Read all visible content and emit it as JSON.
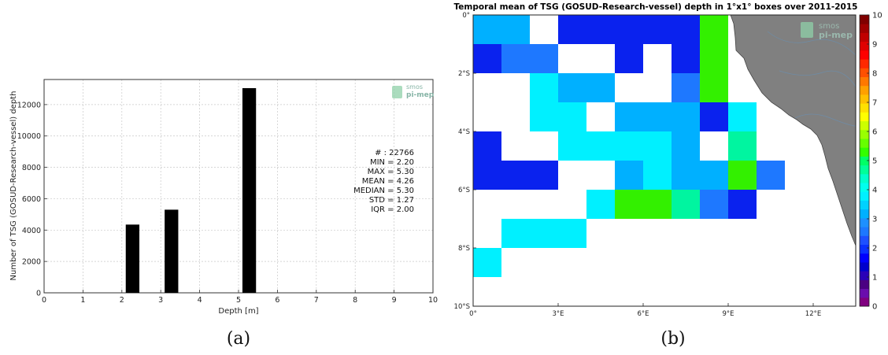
{
  "chart_data": [
    {
      "type": "bar",
      "title": "",
      "xlabel": "Depth [m]",
      "ylabel": "Number of TSG (GOSUD-Research-vessel) depth",
      "xlim": [
        0,
        10
      ],
      "ylim": [
        0,
        13600
      ],
      "xticks": [
        "0",
        "1",
        "2",
        "3",
        "4",
        "5",
        "6",
        "7",
        "8",
        "9",
        "10"
      ],
      "yticks": [
        "0",
        "2000",
        "4000",
        "6000",
        "8000",
        "10000",
        "12000"
      ],
      "grid": true,
      "bars": [
        {
          "x0": 2.1,
          "x1": 2.45,
          "value": 4350
        },
        {
          "x0": 3.1,
          "x1": 3.45,
          "value": 5300
        },
        {
          "x0": 5.1,
          "x1": 5.45,
          "value": 13050
        }
      ],
      "bar_color": "#000000",
      "stats": [
        "# : 22766",
        "MIN = 2.20",
        "MAX = 5.30",
        "MEAN = 4.26",
        "MEDIAN = 5.30",
        "STD = 1.27",
        "IQR = 2.00"
      ],
      "logo": {
        "line1": "smos",
        "line2": "pi-mep"
      },
      "caption": "(a)"
    },
    {
      "type": "heatmap",
      "title": "Temporal mean of TSG (GOSUD-Research-vessel) depth in 1°x1° boxes over 2011-2015",
      "lon_range": [
        0,
        13.5
      ],
      "lat_range": [
        -10,
        0
      ],
      "xticks": [
        {
          "value": 0,
          "label": "0°"
        },
        {
          "value": 3,
          "label": "3°E"
        },
        {
          "value": 6,
          "label": "6°E"
        },
        {
          "value": 9,
          "label": "9°E"
        },
        {
          "value": 12,
          "label": "12°E"
        }
      ],
      "yticks": [
        {
          "value": 0,
          "label": "0°"
        },
        {
          "value": -2,
          "label": "2°S"
        },
        {
          "value": -4,
          "label": "4°S"
        },
        {
          "value": -6,
          "label": "6°S"
        },
        {
          "value": -8,
          "label": "8°S"
        },
        {
          "value": -10,
          "label": "10°S"
        }
      ],
      "colorbar": {
        "range": [
          0,
          10
        ],
        "ticks": [
          "0",
          "1",
          "2",
          "3",
          "4",
          "5",
          "6",
          "7",
          "8",
          "9",
          "10"
        ],
        "colors": [
          "#800080",
          "#6a0dad",
          "#4b0082",
          "#2a00b8",
          "#0000cd",
          "#0000ff",
          "#0a30ff",
          "#1e50ff",
          "#1e78ff",
          "#1e90ff",
          "#00b0ff",
          "#00d2ff",
          "#00f0ff",
          "#00ffee",
          "#00ffcc",
          "#00ff99",
          "#00ff66",
          "#33ff00",
          "#66ff00",
          "#99ff00",
          "#ccff00",
          "#ffff00",
          "#ffe000",
          "#ffc000",
          "#ffa000",
          "#ff7800",
          "#ff5000",
          "#ff2800",
          "#ff0000",
          "#e00000",
          "#c00000",
          "#a00000",
          "#800000"
        ]
      },
      "cells": [
        {
          "lon": 0,
          "lat": -1,
          "value": 3.3
        },
        {
          "lon": 1,
          "lat": -1,
          "value": 3.3
        },
        {
          "lon": 3,
          "lat": -1,
          "value": 2.1
        },
        {
          "lon": 4,
          "lat": -1,
          "value": 2.1
        },
        {
          "lon": 5,
          "lat": -1,
          "value": 2.1
        },
        {
          "lon": 6,
          "lat": -1,
          "value": 2.1
        },
        {
          "lon": 7,
          "lat": -1,
          "value": 2.1
        },
        {
          "lon": 8,
          "lat": -1,
          "value": 5.3
        },
        {
          "lon": 0,
          "lat": -2,
          "value": 2.1
        },
        {
          "lon": 1,
          "lat": -2,
          "value": 2.7
        },
        {
          "lon": 2,
          "lat": -2,
          "value": 2.7
        },
        {
          "lon": 5,
          "lat": -2,
          "value": 2.1
        },
        {
          "lon": 7,
          "lat": -2,
          "value": 2.1
        },
        {
          "lon": 8,
          "lat": -2,
          "value": 5.3
        },
        {
          "lon": 2,
          "lat": -3,
          "value": 3.9
        },
        {
          "lon": 3,
          "lat": -3,
          "value": 3.3
        },
        {
          "lon": 4,
          "lat": -3,
          "value": 3.3
        },
        {
          "lon": 7,
          "lat": -3,
          "value": 2.7
        },
        {
          "lon": 8,
          "lat": -3,
          "value": 5.3
        },
        {
          "lon": 2,
          "lat": -4,
          "value": 3.9
        },
        {
          "lon": 3,
          "lat": -4,
          "value": 3.9
        },
        {
          "lon": 5,
          "lat": -4,
          "value": 3.3
        },
        {
          "lon": 6,
          "lat": -4,
          "value": 3.3
        },
        {
          "lon": 7,
          "lat": -4,
          "value": 3.3
        },
        {
          "lon": 8,
          "lat": -4,
          "value": 2.1
        },
        {
          "lon": 9,
          "lat": -4,
          "value": 3.9
        },
        {
          "lon": 0,
          "lat": -5,
          "value": 2.1
        },
        {
          "lon": 3,
          "lat": -5,
          "value": 3.9
        },
        {
          "lon": 4,
          "lat": -5,
          "value": 3.9
        },
        {
          "lon": 5,
          "lat": -5,
          "value": 3.9
        },
        {
          "lon": 6,
          "lat": -5,
          "value": 3.9
        },
        {
          "lon": 7,
          "lat": -5,
          "value": 3.3
        },
        {
          "lon": 9,
          "lat": -5,
          "value": 4.4
        },
        {
          "lon": 0,
          "lat": -6,
          "value": 2.1
        },
        {
          "lon": 1,
          "lat": -6,
          "value": 2.1
        },
        {
          "lon": 2,
          "lat": -6,
          "value": 2.1
        },
        {
          "lon": 5,
          "lat": -6,
          "value": 3.3
        },
        {
          "lon": 6,
          "lat": -6,
          "value": 3.9
        },
        {
          "lon": 7,
          "lat": -6,
          "value": 3.3
        },
        {
          "lon": 8,
          "lat": -6,
          "value": 3.3
        },
        {
          "lon": 9,
          "lat": -6,
          "value": 5.3
        },
        {
          "lon": 10,
          "lat": -6,
          "value": 2.7
        },
        {
          "lon": 4,
          "lat": -7,
          "value": 3.9
        },
        {
          "lon": 5,
          "lat": -7,
          "value": 5.3
        },
        {
          "lon": 6,
          "lat": -7,
          "value": 5.3
        },
        {
          "lon": 7,
          "lat": -7,
          "value": 4.4
        },
        {
          "lon": 8,
          "lat": -7,
          "value": 2.7
        },
        {
          "lon": 9,
          "lat": -7,
          "value": 2.1
        },
        {
          "lon": 1,
          "lat": -8,
          "value": 3.9
        },
        {
          "lon": 2,
          "lat": -8,
          "value": 3.9
        },
        {
          "lon": 3,
          "lat": -8,
          "value": 3.9
        },
        {
          "lon": 0,
          "lat": -9,
          "value": 3.9
        }
      ],
      "cell_colors": {
        "2.1": "#0a22ee",
        "2.7": "#1e78ff",
        "3.3": "#00b0ff",
        "3.9": "#00f0ff",
        "4.4": "#00f5a0",
        "5.3": "#33f000"
      },
      "land_color": "#808080",
      "logo": {
        "line1": "smos",
        "line2": "pi-mep"
      },
      "caption": "(b)"
    }
  ]
}
